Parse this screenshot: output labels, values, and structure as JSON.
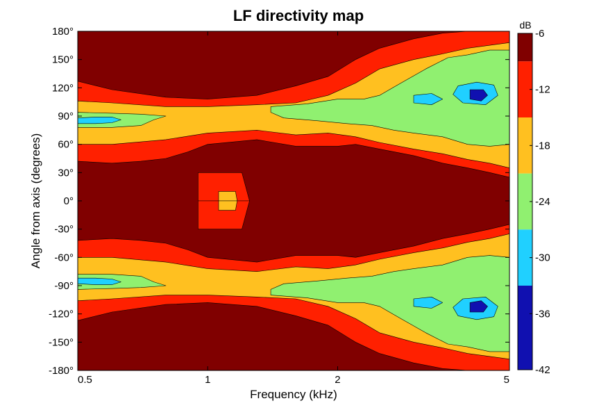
{
  "chart_data": {
    "type": "heatmap",
    "title": "LF directivity map",
    "xlabel": "Frequency (kHz)",
    "ylabel": "Angle from axis (degrees)",
    "x_scale": "log",
    "xlim": [
      0.5,
      5
    ],
    "ylim": [
      -180,
      180
    ],
    "x_ticks": [
      0.5,
      1,
      2,
      5
    ],
    "x_tick_labels": [
      "0.5",
      "1",
      "2",
      "5"
    ],
    "y_ticks": [
      180,
      150,
      120,
      90,
      60,
      30,
      0,
      -30,
      -60,
      -90,
      -120,
      -150,
      -180
    ],
    "y_tick_labels": [
      "180°",
      "150°",
      "120°",
      "90°",
      "60°",
      "30°",
      "0°",
      "-30°",
      "-60°",
      "-90°",
      "-120°",
      "-150°",
      "-180°"
    ],
    "colorbar": {
      "label": "dB",
      "range": [
        -42,
        -6
      ],
      "ticks": [
        -6,
        -12,
        -18,
        -24,
        -30,
        -36,
        -42
      ],
      "tick_labels": [
        "-6",
        "-12",
        "-18",
        "-24",
        "-30",
        "-36",
        "-42"
      ],
      "levels": [
        {
          "min": -9,
          "max": -6,
          "color": "#800000"
        },
        {
          "min": -15,
          "max": -9,
          "color": "#ff2000"
        },
        {
          "min": -21,
          "max": -15,
          "color": "#ffc020"
        },
        {
          "min": -27,
          "max": -21,
          "color": "#90f070"
        },
        {
          "min": -33,
          "max": -27,
          "color": "#20d0ff"
        },
        {
          "min": -42,
          "max": -33,
          "color": "#1010b0"
        }
      ]
    },
    "grid": false,
    "contour_bands_upper_half": [
      {
        "level": -12,
        "color": "#ff2000",
        "points": [
          [
            0.5,
            127
          ],
          [
            0.6,
            118
          ],
          [
            0.8,
            110
          ],
          [
            1.0,
            108
          ],
          [
            1.3,
            112
          ],
          [
            1.6,
            122
          ],
          [
            1.9,
            132
          ],
          [
            2.2,
            150
          ],
          [
            2.5,
            162
          ],
          [
            3.0,
            172
          ],
          [
            3.5,
            178
          ],
          [
            4.0,
            180
          ],
          [
            5.0,
            180
          ],
          [
            5.0,
            25
          ],
          [
            4.5,
            30
          ],
          [
            4.0,
            35
          ],
          [
            3.5,
            40
          ],
          [
            3.0,
            48
          ],
          [
            2.5,
            55
          ],
          [
            2.2,
            60
          ],
          [
            2.0,
            58
          ],
          [
            1.6,
            58
          ],
          [
            1.3,
            65
          ],
          [
            1.0,
            60
          ],
          [
            0.9,
            52
          ],
          [
            0.8,
            45
          ],
          [
            0.7,
            42
          ],
          [
            0.6,
            40
          ],
          [
            0.5,
            42
          ]
        ]
      },
      {
        "level": -18,
        "color": "#ffc020",
        "points": [
          [
            0.5,
            106
          ],
          [
            0.6,
            104
          ],
          [
            0.8,
            100
          ],
          [
            1.0,
            100
          ],
          [
            1.3,
            102
          ],
          [
            1.6,
            104
          ],
          [
            1.9,
            112
          ],
          [
            2.2,
            125
          ],
          [
            2.5,
            140
          ],
          [
            3.0,
            150
          ],
          [
            3.5,
            156
          ],
          [
            4.0,
            162
          ],
          [
            5.0,
            168
          ],
          [
            5.0,
            35
          ],
          [
            4.5,
            40
          ],
          [
            4.0,
            44
          ],
          [
            3.5,
            50
          ],
          [
            3.0,
            55
          ],
          [
            2.5,
            62
          ],
          [
            2.2,
            68
          ],
          [
            1.9,
            72
          ],
          [
            1.6,
            70
          ],
          [
            1.3,
            75
          ],
          [
            1.0,
            72
          ],
          [
            0.8,
            65
          ],
          [
            0.6,
            60
          ],
          [
            0.5,
            60
          ]
        ]
      },
      {
        "level": -24,
        "color": "#90f070",
        "points": [
          [
            0.5,
            94
          ],
          [
            0.6,
            93
          ],
          [
            0.7,
            92
          ],
          [
            0.8,
            90
          ],
          [
            0.75,
            86
          ],
          [
            0.7,
            80
          ],
          [
            0.6,
            78
          ],
          [
            0.5,
            78
          ]
        ]
      },
      {
        "level": -24,
        "color": "#90f070",
        "points": [
          [
            1.4,
            100
          ],
          [
            1.7,
            103
          ],
          [
            2.0,
            108
          ],
          [
            2.3,
            108
          ],
          [
            2.5,
            112
          ],
          [
            2.8,
            125
          ],
          [
            3.2,
            140
          ],
          [
            3.6,
            152
          ],
          [
            4.0,
            155
          ],
          [
            4.5,
            160
          ],
          [
            5.0,
            160
          ],
          [
            5.0,
            60
          ],
          [
            4.5,
            58
          ],
          [
            4.0,
            60
          ],
          [
            3.5,
            68
          ],
          [
            3.0,
            72
          ],
          [
            2.7,
            75
          ],
          [
            2.4,
            80
          ],
          [
            2.1,
            82
          ],
          [
            1.8,
            85
          ],
          [
            1.5,
            88
          ],
          [
            1.4,
            94
          ]
        ]
      },
      {
        "level": -30,
        "color": "#20d0ff",
        "points": [
          [
            0.5,
            88
          ],
          [
            0.55,
            89
          ],
          [
            0.6,
            89
          ],
          [
            0.63,
            86
          ],
          [
            0.6,
            83
          ],
          [
            0.55,
            82
          ],
          [
            0.5,
            82
          ]
        ]
      },
      {
        "level": -30,
        "color": "#20d0ff",
        "points": [
          [
            3.8,
            122
          ],
          [
            4.2,
            126
          ],
          [
            4.6,
            123
          ],
          [
            4.7,
            112
          ],
          [
            4.4,
            102
          ],
          [
            3.9,
            104
          ],
          [
            3.7,
            113
          ]
        ]
      },
      {
        "level": -30,
        "color": "#20d0ff",
        "points": [
          [
            3.0,
            112
          ],
          [
            3.3,
            114
          ],
          [
            3.5,
            108
          ],
          [
            3.3,
            102
          ],
          [
            3.0,
            104
          ]
        ]
      },
      {
        "level": -36,
        "color": "#1010b0",
        "points": [
          [
            4.05,
            118
          ],
          [
            4.35,
            118
          ],
          [
            4.45,
            112
          ],
          [
            4.3,
            106
          ],
          [
            4.05,
            108
          ]
        ]
      },
      {
        "level": -12,
        "color": "#ff2000",
        "points": [
          [
            0.95,
            30
          ],
          [
            1.2,
            30
          ],
          [
            1.25,
            0
          ],
          [
            0.95,
            0
          ]
        ]
      },
      {
        "level": -18,
        "color": "#ffc020",
        "points": [
          [
            1.06,
            10
          ],
          [
            1.16,
            10
          ],
          [
            1.17,
            0
          ],
          [
            1.06,
            0
          ]
        ]
      }
    ]
  }
}
